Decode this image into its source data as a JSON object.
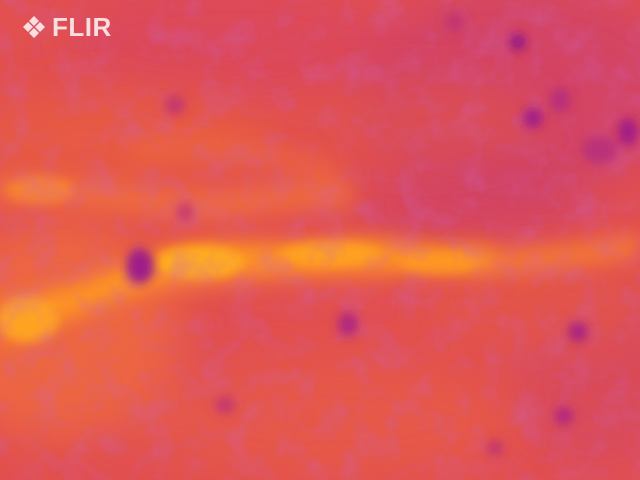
{
  "image": {
    "kind": "thermal camera frame",
    "palette": "iron",
    "colors": {
      "base": "#e2504f",
      "warm": "#f2743a",
      "hot": "#ff9a1f",
      "hottest": "#ffb01c",
      "cool": "#c93f73",
      "coolest": "#a61e86"
    }
  },
  "branding": {
    "logo_text": "FLIR",
    "logo_icon": "flir-diamond-icon"
  }
}
